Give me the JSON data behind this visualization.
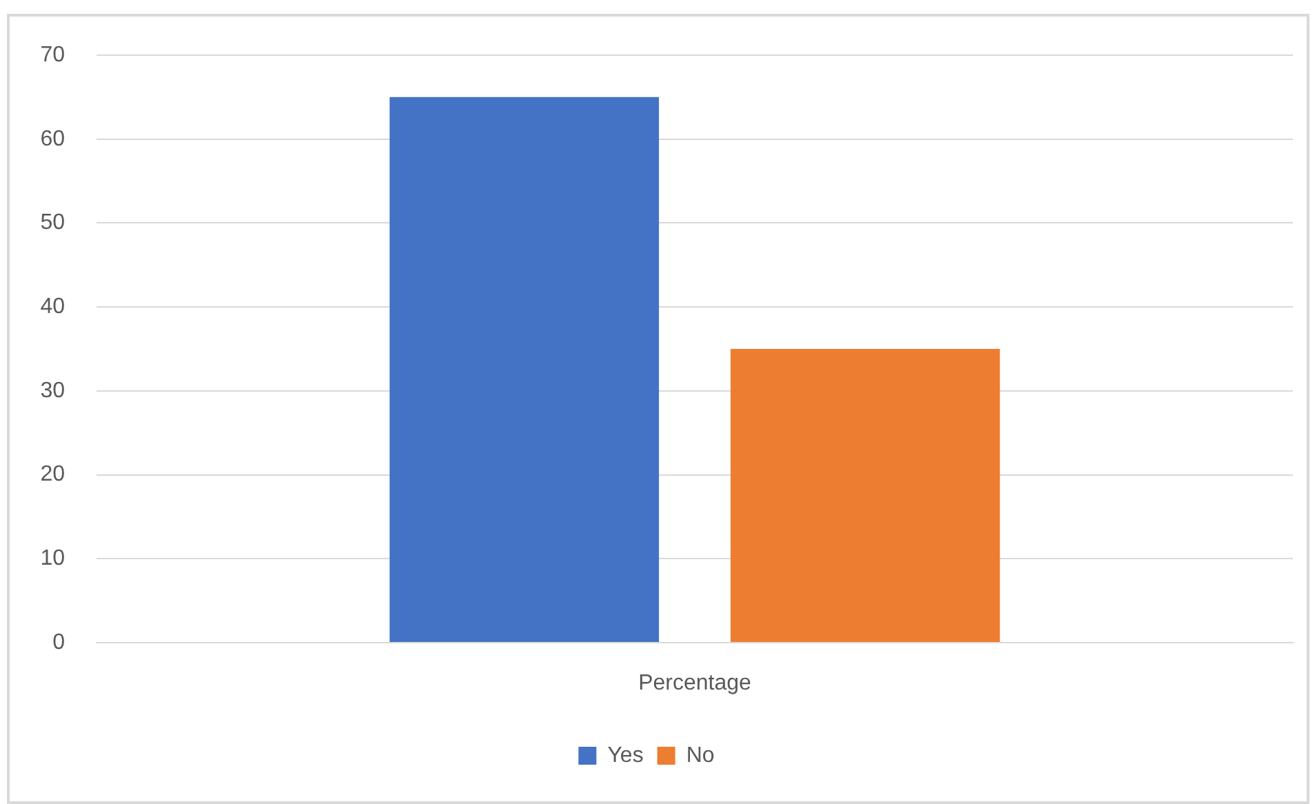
{
  "chart_data": {
    "type": "bar",
    "categories": [
      "Percentage"
    ],
    "series": [
      {
        "name": "Yes",
        "color": "#4472c4",
        "values": [
          65
        ]
      },
      {
        "name": "No",
        "color": "#ed7d31",
        "values": [
          35
        ]
      }
    ],
    "ylim": [
      0,
      70
    ],
    "yticks": [
      0,
      10,
      20,
      30,
      40,
      50,
      60,
      70
    ],
    "grid": "y",
    "legend": "bottom"
  }
}
